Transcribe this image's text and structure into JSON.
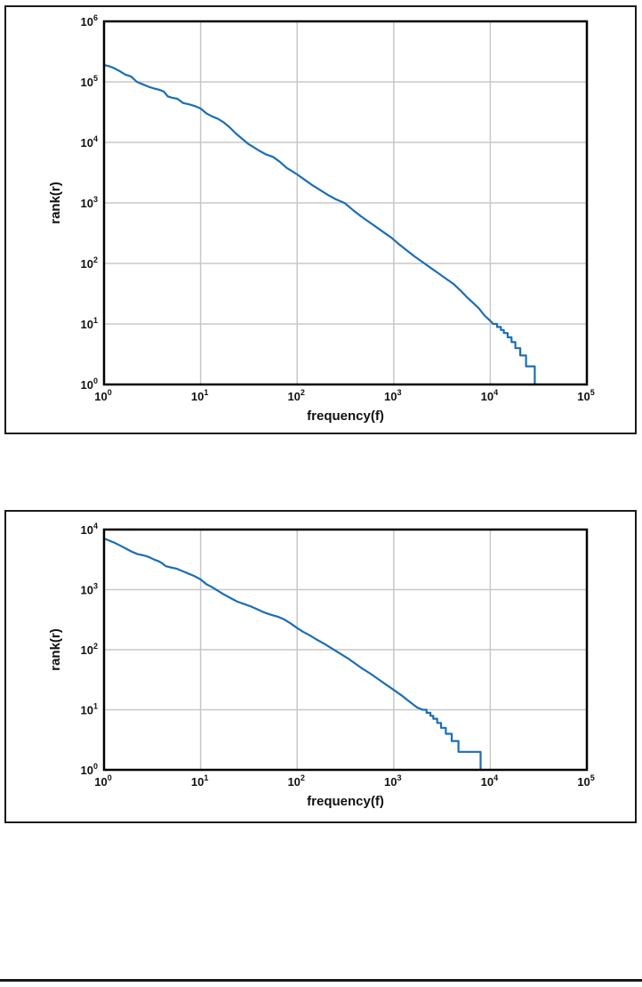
{
  "page": {
    "background": "#ffffff"
  },
  "colors": {
    "curve": "#1b6eb5",
    "grid": "#c8c8c8",
    "frame": "#000000",
    "text": "#111111",
    "panel_border": "#1a1a1a",
    "rule": "#1a1a1a"
  },
  "chart_data": [
    {
      "type": "line",
      "title": "",
      "xlabel": "frequency(f)",
      "ylabel": "rank(r)",
      "x_scale": "log",
      "y_scale": "log",
      "tick_base": "10",
      "x_range_exp": [
        0,
        5
      ],
      "y_range_exp": [
        0,
        6
      ],
      "x_tick_exponents": [
        0,
        1,
        2,
        3,
        4,
        5
      ],
      "y_tick_exponents": [
        0,
        1,
        2,
        3,
        4,
        5,
        6
      ],
      "grid": true,
      "legend": "none",
      "line_color": "#1b6eb5",
      "series": [
        {
          "name": "zipf-curve-top",
          "points_log10": [
            [
              0.0,
              5.28
            ],
            [
              0.05,
              5.26
            ],
            [
              0.1,
              5.23
            ],
            [
              0.16,
              5.18
            ],
            [
              0.22,
              5.12
            ],
            [
              0.28,
              5.09
            ],
            [
              0.34,
              5.0
            ],
            [
              0.4,
              4.96
            ],
            [
              0.46,
              4.92
            ],
            [
              0.52,
              4.89
            ],
            [
              0.57,
              4.87
            ],
            [
              0.62,
              4.84
            ],
            [
              0.66,
              4.76
            ],
            [
              0.7,
              4.74
            ],
            [
              0.76,
              4.72
            ],
            [
              0.82,
              4.65
            ],
            [
              0.88,
              4.63
            ],
            [
              0.94,
              4.6
            ],
            [
              1.0,
              4.56
            ],
            [
              1.06,
              4.48
            ],
            [
              1.12,
              4.43
            ],
            [
              1.18,
              4.39
            ],
            [
              1.24,
              4.33
            ],
            [
              1.3,
              4.25
            ],
            [
              1.37,
              4.14
            ],
            [
              1.43,
              4.06
            ],
            [
              1.49,
              3.98
            ],
            [
              1.55,
              3.92
            ],
            [
              1.61,
              3.86
            ],
            [
              1.68,
              3.8
            ],
            [
              1.75,
              3.76
            ],
            [
              1.82,
              3.68
            ],
            [
              1.89,
              3.58
            ],
            [
              1.95,
              3.52
            ],
            [
              2.0,
              3.47
            ],
            [
              2.08,
              3.38
            ],
            [
              2.16,
              3.29
            ],
            [
              2.24,
              3.21
            ],
            [
              2.32,
              3.13
            ],
            [
              2.4,
              3.06
            ],
            [
              2.49,
              3.0
            ],
            [
              2.58,
              2.88
            ],
            [
              2.66,
              2.78
            ],
            [
              2.74,
              2.69
            ],
            [
              2.82,
              2.6
            ],
            [
              2.9,
              2.51
            ],
            [
              2.98,
              2.42
            ],
            [
              3.06,
              2.31
            ],
            [
              3.14,
              2.21
            ],
            [
              3.22,
              2.11
            ],
            [
              3.3,
              2.02
            ],
            [
              3.38,
              1.93
            ],
            [
              3.46,
              1.84
            ],
            [
              3.54,
              1.75
            ],
            [
              3.62,
              1.66
            ],
            [
              3.7,
              1.54
            ],
            [
              3.76,
              1.44
            ],
            [
              3.82,
              1.35
            ],
            [
              3.88,
              1.26
            ],
            [
              3.94,
              1.14
            ],
            [
              4.0,
              1.05
            ],
            [
              4.03,
              1.0
            ],
            [
              4.07,
              1.0
            ],
            [
              4.07,
              0.95
            ],
            [
              4.11,
              0.95
            ],
            [
              4.11,
              0.9
            ],
            [
              4.14,
              0.9
            ],
            [
              4.14,
              0.85
            ],
            [
              4.18,
              0.85
            ],
            [
              4.18,
              0.78
            ],
            [
              4.22,
              0.78
            ],
            [
              4.22,
              0.7
            ],
            [
              4.26,
              0.7
            ],
            [
              4.26,
              0.6
            ],
            [
              4.31,
              0.6
            ],
            [
              4.31,
              0.48
            ],
            [
              4.37,
              0.48
            ],
            [
              4.37,
              0.3
            ],
            [
              4.46,
              0.3
            ],
            [
              4.46,
              0.0
            ]
          ]
        }
      ]
    },
    {
      "type": "line",
      "title": "",
      "xlabel": "frequency(f)",
      "ylabel": "rank(r)",
      "x_scale": "log",
      "y_scale": "log",
      "tick_base": "10",
      "x_range_exp": [
        0,
        5
      ],
      "y_range_exp": [
        0,
        4
      ],
      "x_tick_exponents": [
        0,
        1,
        2,
        3,
        4,
        5
      ],
      "y_tick_exponents": [
        0,
        1,
        2,
        3,
        4
      ],
      "grid": true,
      "legend": "none",
      "line_color": "#1b6eb5",
      "series": [
        {
          "name": "zipf-curve-bottom",
          "points_log10": [
            [
              0.0,
              3.85
            ],
            [
              0.05,
              3.82
            ],
            [
              0.11,
              3.78
            ],
            [
              0.17,
              3.73
            ],
            [
              0.23,
              3.68
            ],
            [
              0.29,
              3.63
            ],
            [
              0.35,
              3.59
            ],
            [
              0.41,
              3.57
            ],
            [
              0.47,
              3.54
            ],
            [
              0.52,
              3.5
            ],
            [
              0.57,
              3.47
            ],
            [
              0.6,
              3.44
            ],
            [
              0.64,
              3.39
            ],
            [
              0.69,
              3.37
            ],
            [
              0.75,
              3.35
            ],
            [
              0.81,
              3.31
            ],
            [
              0.87,
              3.27
            ],
            [
              0.93,
              3.23
            ],
            [
              1.0,
              3.17
            ],
            [
              1.06,
              3.09
            ],
            [
              1.12,
              3.04
            ],
            [
              1.18,
              2.98
            ],
            [
              1.24,
              2.92
            ],
            [
              1.31,
              2.86
            ],
            [
              1.38,
              2.8
            ],
            [
              1.45,
              2.76
            ],
            [
              1.52,
              2.72
            ],
            [
              1.59,
              2.67
            ],
            [
              1.66,
              2.62
            ],
            [
              1.73,
              2.58
            ],
            [
              1.8,
              2.55
            ],
            [
              1.87,
              2.5
            ],
            [
              1.93,
              2.44
            ],
            [
              2.0,
              2.36
            ],
            [
              2.06,
              2.3
            ],
            [
              2.13,
              2.24
            ],
            [
              2.2,
              2.17
            ],
            [
              2.28,
              2.1
            ],
            [
              2.36,
              2.02
            ],
            [
              2.44,
              1.94
            ],
            [
              2.52,
              1.86
            ],
            [
              2.6,
              1.77
            ],
            [
              2.68,
              1.68
            ],
            [
              2.76,
              1.6
            ],
            [
              2.84,
              1.51
            ],
            [
              2.92,
              1.42
            ],
            [
              3.0,
              1.33
            ],
            [
              3.08,
              1.24
            ],
            [
              3.16,
              1.14
            ],
            [
              3.24,
              1.04
            ],
            [
              3.3,
              1.0
            ],
            [
              3.34,
              1.0
            ],
            [
              3.34,
              0.95
            ],
            [
              3.38,
              0.95
            ],
            [
              3.38,
              0.9
            ],
            [
              3.41,
              0.9
            ],
            [
              3.41,
              0.85
            ],
            [
              3.45,
              0.85
            ],
            [
              3.45,
              0.78
            ],
            [
              3.49,
              0.78
            ],
            [
              3.49,
              0.7
            ],
            [
              3.54,
              0.7
            ],
            [
              3.54,
              0.6
            ],
            [
              3.6,
              0.6
            ],
            [
              3.6,
              0.48
            ],
            [
              3.67,
              0.48
            ],
            [
              3.67,
              0.3
            ],
            [
              3.9,
              0.3
            ],
            [
              3.9,
              0.0
            ]
          ]
        }
      ]
    }
  ]
}
